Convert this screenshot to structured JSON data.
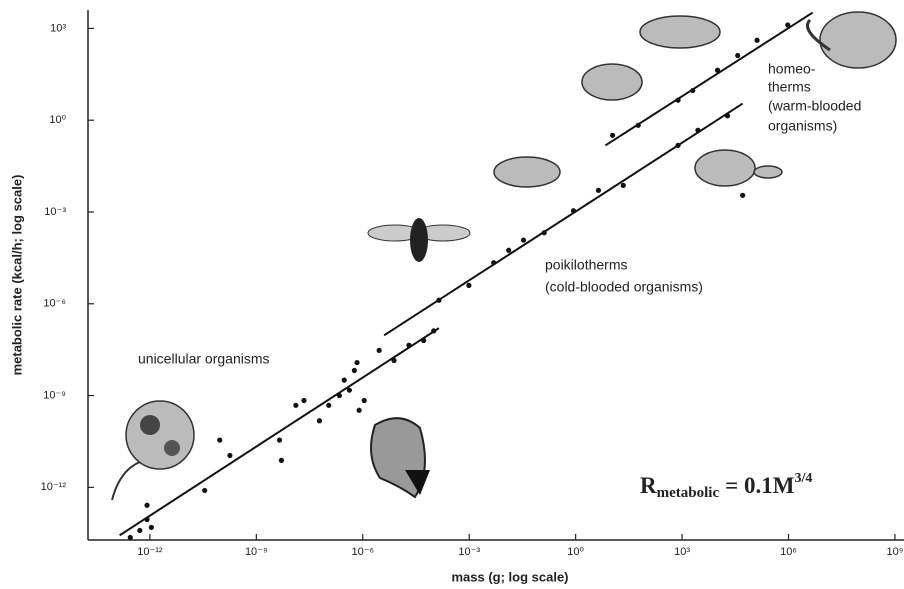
{
  "chart_data": {
    "type": "scatter",
    "x_label": "mass (g; log scale)",
    "y_label": "metabolic rate (kcal/h; log scale)",
    "xscale": "log",
    "yscale": "log",
    "xlim": [
      1.8e-14,
      1800000000.0
    ],
    "ylim": [
      1.9e-14,
      4000
    ],
    "xticks": [
      {
        "value": 1e-12,
        "label": "10⁻¹²"
      },
      {
        "value": 1e-09,
        "label": "10⁻⁹"
      },
      {
        "value": 1e-06,
        "label": "10⁻⁶"
      },
      {
        "value": 0.001,
        "label": "10⁻³"
      },
      {
        "value": 1,
        "label": "10⁰"
      },
      {
        "value": 1000,
        "label": "10³"
      },
      {
        "value": 1000000,
        "label": "10⁶"
      },
      {
        "value": 1000000000,
        "label": "10⁹"
      }
    ],
    "yticks": [
      {
        "value": 1e-12,
        "label": "10⁻¹²"
      },
      {
        "value": 1e-09,
        "label": "10⁻⁹"
      },
      {
        "value": 1e-06,
        "label": "10⁻⁶"
      },
      {
        "value": 0.001,
        "label": "10⁻³"
      },
      {
        "value": 1,
        "label": "10⁰"
      },
      {
        "value": 1000,
        "label": "10³"
      }
    ],
    "color": "#111111",
    "points": {
      "x": [
        2.8e-13,
        5.2e-13,
        8.3e-13,
        1.1e-12,
        8.3e-13,
        3.5e-11,
        1.8e-10,
        9.3e-11,
        5.1e-09,
        4.5e-09,
        1.3e-08,
        2.2e-08,
        6e-08,
        1.1e-07,
        2.2e-07,
        3e-07,
        4.2e-07,
        5.8e-07,
        6.9e-07,
        7.9e-07,
        1.1e-06,
        2.9e-06,
        7.6e-06,
        2e-05,
        5.2e-05,
        0.0001,
        0.00014,
        0.00098,
        0.0049,
        0.013,
        0.034,
        0.13,
        0.87,
        4.4,
        22,
        11,
        58,
        770,
        2000,
        10000,
        37000,
        130000,
        950000,
        770,
        2800,
        19000,
        51000
      ],
      "y": [
        2.3e-14,
        3.9e-14,
        2.6e-13,
        4.9e-14,
        8.9e-14,
        7.9e-13,
        1.1e-11,
        3.5e-11,
        7.6e-12,
        3.5e-11,
        4.8e-10,
        6.9e-10,
        1.5e-10,
        4.8e-10,
        1e-09,
        3.2e-09,
        1.5e-09,
        6.6e-09,
        1.2e-08,
        3.3e-10,
        6.9e-10,
        3e-08,
        1.4e-08,
        4.4e-08,
        6.3e-08,
        1.3e-07,
        1.3e-06,
        4e-06,
        2.2e-05,
        5.6e-05,
        0.00012,
        0.00021,
        0.0011,
        0.0051,
        0.0074,
        0.32,
        0.68,
        4.5,
        9.3,
        43,
        130,
        410,
        1300,
        0.15,
        0.47,
        1.4,
        0.0035
      ]
    },
    "fit_lines": [
      {
        "x": [
          1.4e-13,
          0.00014
        ],
        "y": [
          2.7e-14,
          1.6e-07
        ]
      },
      {
        "x": [
          4e-06,
          51000
        ],
        "y": [
          9.3e-08,
          3.5
        ]
      },
      {
        "x": [
          6.9,
          4800000
        ],
        "y": [
          0.15,
          3300
        ]
      }
    ],
    "annotations": [
      "unicellular organisms",
      "poikilotherms",
      "(cold-blooded organisms)",
      "homeo-",
      "therms",
      "(warm-blooded",
      "organisms)"
    ],
    "formula": {
      "base": "R",
      "subscript": "metabolic",
      "rhs": "= 0.1M",
      "exponent": "3/4"
    }
  }
}
